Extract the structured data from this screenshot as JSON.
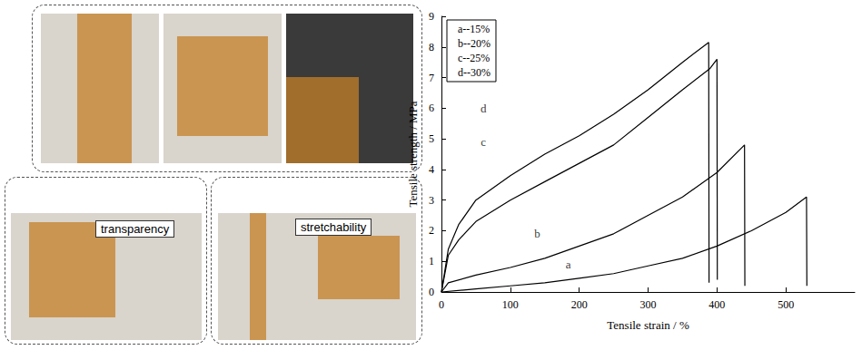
{
  "photo_labels": [
    "transparency",
    "stretchability"
  ],
  "chart_data": {
    "type": "line",
    "x_label": "Tensile strain / %",
    "y_label": "Tensile strength / MPa",
    "xlim": [
      0,
      600
    ],
    "xticks": [
      0,
      100,
      200,
      300,
      400,
      500
    ],
    "ylim": [
      0,
      9
    ],
    "yticks": [
      0,
      1,
      2,
      3,
      4,
      5,
      6,
      7,
      8,
      9
    ],
    "grid": false,
    "legend": "upper left",
    "marker": "none",
    "series": [
      {
        "name": "a--15%",
        "color": "#000000",
        "x": [
          0,
          50,
          100,
          150,
          200,
          250,
          300,
          350,
          400,
          450,
          500,
          530,
          530.5
        ],
        "values": [
          0,
          0.1,
          0.2,
          0.3,
          0.45,
          0.6,
          0.85,
          1.1,
          1.5,
          2.0,
          2.6,
          3.1,
          0.2
        ]
      },
      {
        "name": "b--20%",
        "color": "#000000",
        "x": [
          0,
          10,
          50,
          100,
          150,
          200,
          250,
          300,
          350,
          400,
          440,
          440.5
        ],
        "values": [
          0,
          0.3,
          0.55,
          0.8,
          1.1,
          1.5,
          1.9,
          2.5,
          3.1,
          3.9,
          4.8,
          0.2
        ]
      },
      {
        "name": "c--25%",
        "color": "#000000",
        "x": [
          0,
          10,
          25,
          50,
          100,
          150,
          200,
          250,
          300,
          350,
          390,
          400,
          400.5
        ],
        "values": [
          0,
          1.2,
          1.7,
          2.3,
          3.0,
          3.6,
          4.2,
          4.8,
          5.7,
          6.6,
          7.3,
          7.6,
          0.4
        ]
      },
      {
        "name": "d--30%",
        "color": "#000000",
        "x": [
          0,
          10,
          25,
          50,
          100,
          150,
          200,
          250,
          300,
          350,
          385,
          388,
          388.5
        ],
        "values": [
          0,
          1.4,
          2.2,
          3.0,
          3.8,
          4.5,
          5.1,
          5.8,
          6.6,
          7.5,
          8.1,
          8.15,
          0.3
        ]
      }
    ],
    "annotations": [
      {
        "text": "a",
        "x": 184,
        "y": 0.9
      },
      {
        "text": "b",
        "x": 139,
        "y": 1.9
      },
      {
        "text": "c",
        "x": 61,
        "y": 4.9
      },
      {
        "text": "d",
        "x": 61,
        "y": 6.0
      }
    ]
  }
}
